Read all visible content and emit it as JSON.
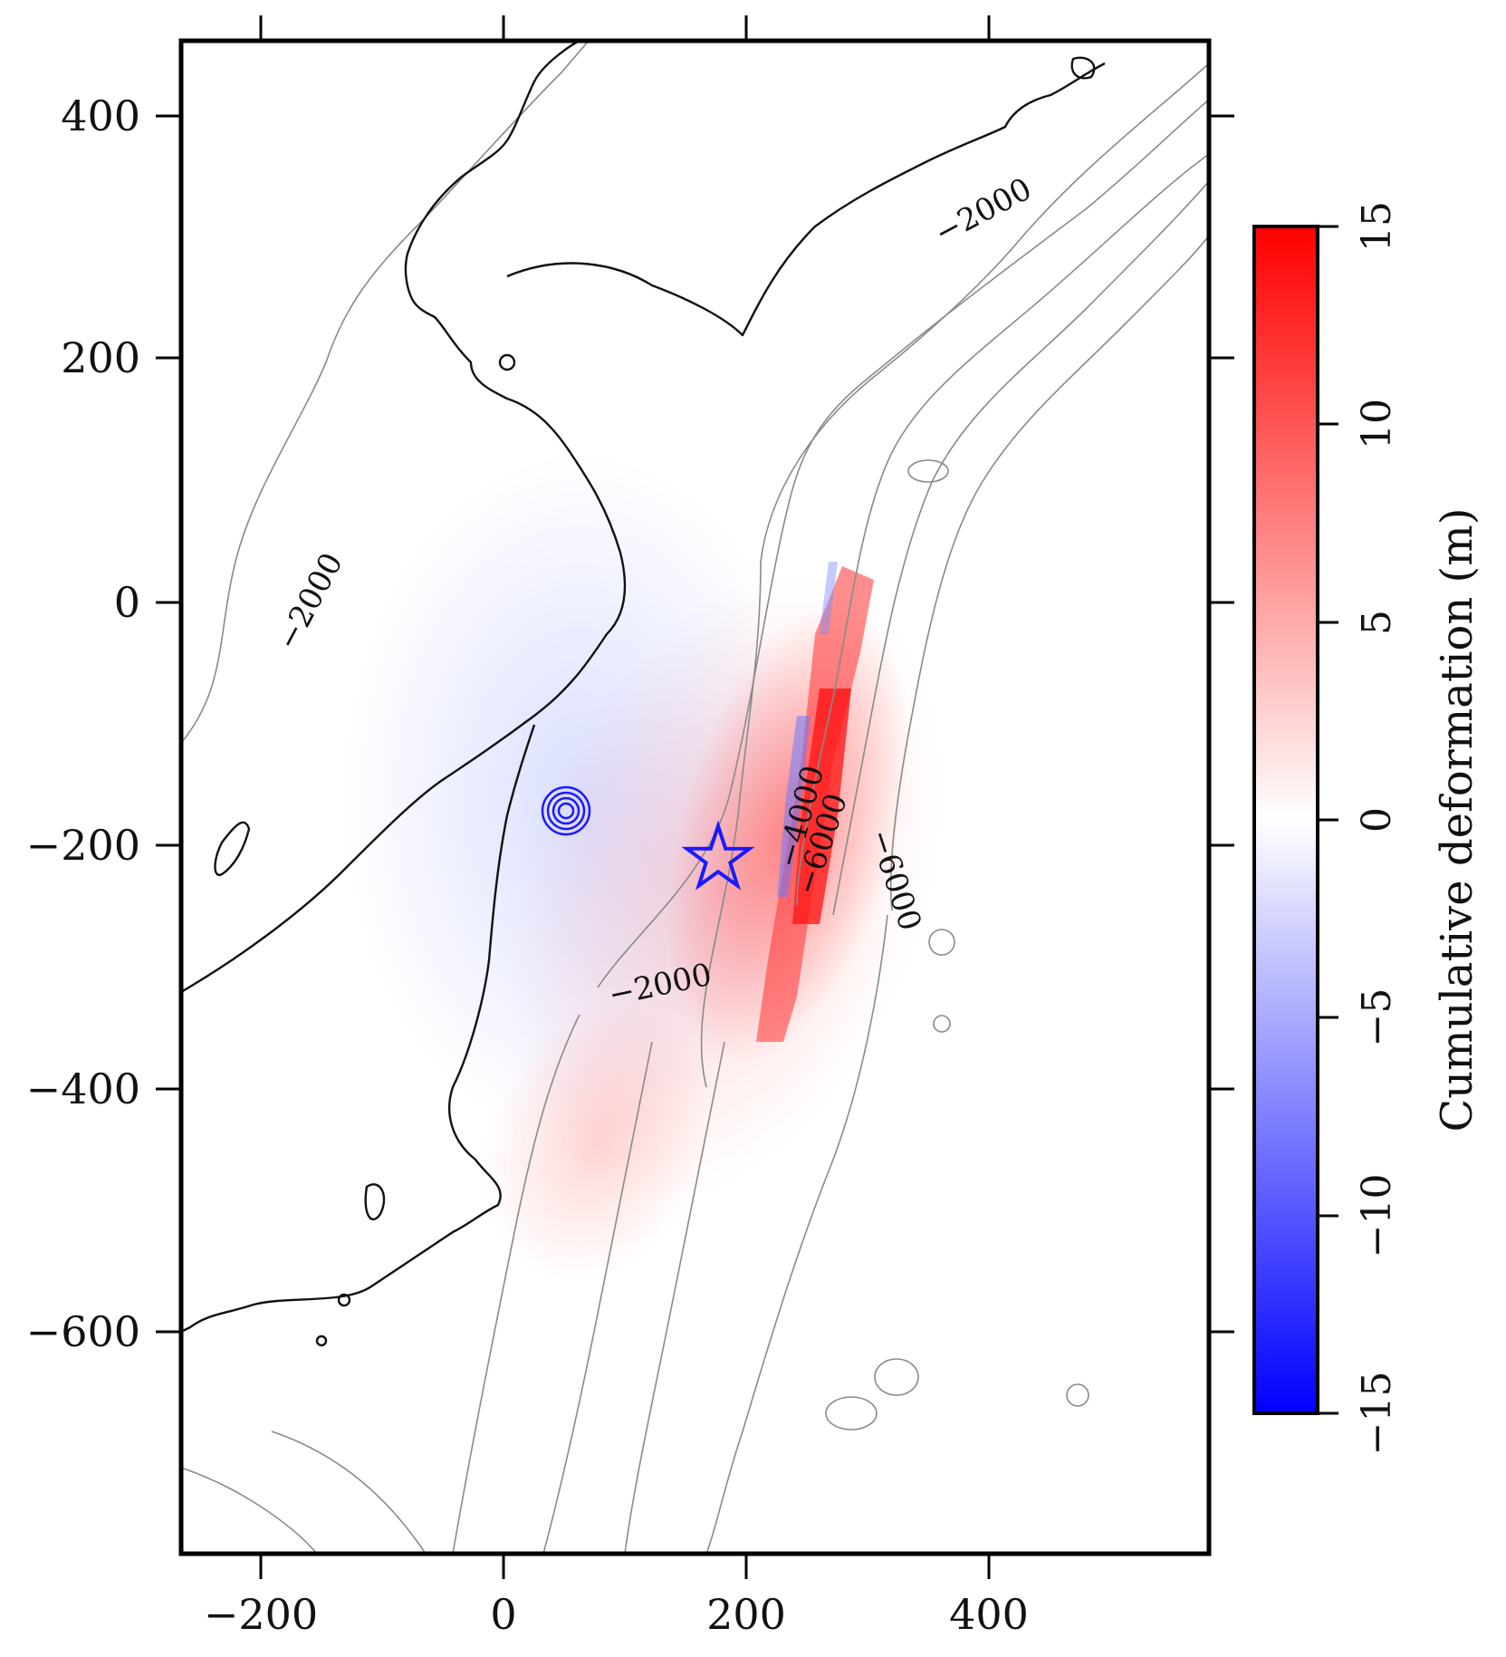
{
  "map": {
    "x_ticks": [
      "−200",
      "0",
      "200",
      "400"
    ],
    "y_ticks": [
      "400",
      "200",
      "0",
      "−200",
      "−400",
      "−600"
    ],
    "contour_labels": [
      "−2000",
      "−2000",
      "−2000",
      "−4000",
      "−6000",
      "−6000"
    ],
    "markers": {
      "epicenter": "star",
      "station": "concentric-circles"
    },
    "colors": {
      "uplift": "#ff0000",
      "subsidence": "#0000ff",
      "coastline": "#111111",
      "contour": "#8a8a8a",
      "marker": "#1a1aff"
    }
  },
  "colorbar": {
    "title": "Cumulative deformation (m)",
    "ticks": [
      "15",
      "10",
      "5",
      "0",
      "−5",
      "−10",
      "−15"
    ],
    "range": [
      -15,
      15
    ],
    "colors": {
      "max": "#ff0000",
      "mid": "#ffffff",
      "min": "#0000ff"
    }
  }
}
